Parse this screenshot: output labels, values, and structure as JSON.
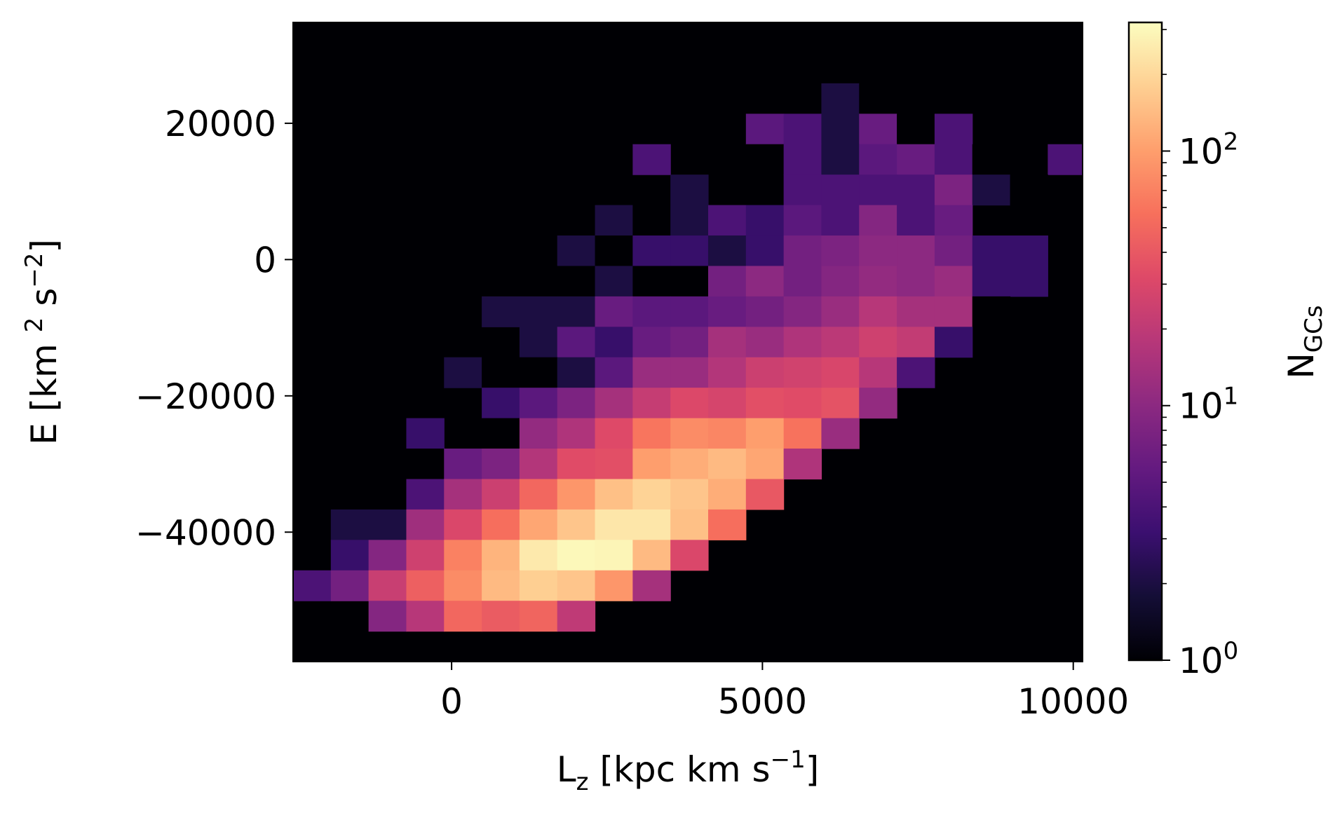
{
  "chart_data": {
    "type": "heatmap",
    "x_axis": {
      "label_main": "L",
      "label_sub": "z",
      "label_rest": " [kpc km s",
      "label_sup": "−1",
      "label_end": "]",
      "range": [
        -2550,
        10150
      ],
      "ticks": [
        0,
        5000,
        10000
      ],
      "tick_labels": [
        "0",
        "5000",
        "10000"
      ]
    },
    "y_axis": {
      "label_main": "E [km ",
      "label_sup1": "2",
      "label_mid": " s",
      "label_sup2": "−2",
      "label_end": "]",
      "range": [
        -59000,
        34800
      ],
      "ticks": [
        -40000,
        -20000,
        0,
        20000
      ],
      "tick_labels": [
        "−40000",
        "−20000",
        "0",
        "20000"
      ]
    },
    "colorbar": {
      "label_main": "N",
      "label_sub": "GCs",
      "scale": "log",
      "range": [
        1,
        320
      ],
      "ticks": [
        1,
        10,
        100
      ],
      "tick_base": "10",
      "tick_exponents": [
        "0",
        "1",
        "2"
      ],
      "colormap": "magma"
    },
    "bins": {
      "x_start": -2550,
      "x_width": 607,
      "y_top": 34800,
      "y_height": 4467,
      "n_cols": 21,
      "n_rows": 21,
      "counts": [
        [
          0,
          0,
          0,
          0,
          0,
          0,
          0,
          0,
          0,
          0,
          0,
          0,
          0,
          0,
          0,
          0,
          0,
          0,
          1,
          0,
          0
        ],
        [
          0,
          0,
          0,
          0,
          0,
          0,
          0,
          0,
          0,
          0,
          0,
          0,
          0,
          0,
          0,
          0,
          0,
          0,
          0,
          1,
          0
        ],
        [
          0,
          0,
          0,
          0,
          0,
          0,
          0,
          0,
          0,
          0,
          0,
          0,
          0,
          1,
          2,
          1,
          1,
          0,
          0,
          1,
          0
        ],
        [
          0,
          0,
          0,
          0,
          0,
          0,
          0,
          0,
          0,
          0,
          0,
          1,
          5,
          4,
          2,
          6,
          1,
          4,
          0,
          0,
          0
        ],
        [
          0,
          0,
          0,
          0,
          0,
          0,
          0,
          0,
          0,
          4,
          0,
          0,
          1,
          4,
          2,
          5,
          6,
          4,
          1,
          0,
          4
        ],
        [
          0,
          0,
          0,
          0,
          0,
          0,
          0,
          0,
          0,
          0,
          2,
          0,
          0,
          4,
          4,
          4,
          4,
          8,
          2,
          1,
          0
        ],
        [
          0,
          0,
          0,
          0,
          0,
          0,
          0,
          0,
          2,
          1,
          2,
          4,
          3,
          5,
          4,
          9,
          4,
          6,
          0,
          0,
          0
        ],
        [
          0,
          0,
          0,
          0,
          1,
          0,
          0,
          2,
          1,
          3,
          3,
          2,
          3,
          7,
          8,
          10,
          10,
          7,
          3,
          3,
          0
        ],
        [
          0,
          0,
          0,
          0,
          0,
          0,
          1,
          1,
          2,
          1,
          1,
          7,
          10,
          7,
          9,
          11,
          10,
          12,
          3,
          3,
          0
        ],
        [
          0,
          0,
          0,
          0,
          0,
          2,
          2,
          2,
          6,
          5,
          5,
          6,
          7,
          9,
          12,
          18,
          14,
          14,
          1,
          0,
          0
        ],
        [
          0,
          0,
          0,
          0,
          0,
          0,
          2,
          5,
          3,
          6,
          7,
          14,
          12,
          16,
          19,
          25,
          21,
          3,
          0,
          0,
          0
        ],
        [
          0,
          0,
          0,
          0,
          2,
          1,
          1,
          2,
          5,
          12,
          12,
          17,
          24,
          26,
          29,
          18,
          4,
          0,
          0,
          0,
          0
        ],
        [
          0,
          0,
          0,
          0,
          0,
          3,
          5,
          8,
          14,
          22,
          31,
          28,
          35,
          33,
          37,
          11,
          0,
          0,
          0,
          0,
          0
        ],
        [
          1,
          0,
          0,
          3,
          0,
          1,
          11,
          16,
          32,
          60,
          80,
          74,
          100,
          58,
          12,
          0,
          0,
          0,
          0,
          0,
          0
        ],
        [
          0,
          0,
          0,
          1,
          6,
          8,
          17,
          33,
          35,
          100,
          120,
          140,
          110,
          16,
          0,
          0,
          0,
          0,
          0,
          0,
          0
        ],
        [
          0,
          1,
          1,
          4,
          14,
          24,
          50,
          90,
          150,
          190,
          160,
          120,
          40,
          0,
          0,
          0,
          0,
          0,
          0,
          0,
          0
        ],
        [
          0,
          2,
          2,
          13,
          30,
          55,
          110,
          160,
          240,
          240,
          150,
          55,
          0,
          0,
          0,
          0,
          0,
          0,
          0,
          0,
          0
        ],
        [
          0,
          3,
          9,
          25,
          70,
          130,
          250,
          300,
          290,
          140,
          30,
          0,
          0,
          0,
          0,
          0,
          0,
          0,
          0,
          0,
          0
        ],
        [
          4,
          7,
          23,
          45,
          80,
          140,
          180,
          160,
          90,
          14,
          0,
          0,
          0,
          0,
          0,
          0,
          0,
          0,
          0,
          0,
          0
        ],
        [
          0,
          0,
          9,
          18,
          50,
          42,
          48,
          20,
          0,
          0,
          0,
          0,
          0,
          0,
          0,
          0,
          0,
          0,
          0,
          0,
          0
        ],
        [
          0,
          0,
          0,
          0,
          0,
          0,
          0,
          0,
          0,
          0,
          0,
          0,
          0,
          0,
          0,
          0,
          0,
          0,
          0,
          0,
          0
        ]
      ]
    }
  }
}
